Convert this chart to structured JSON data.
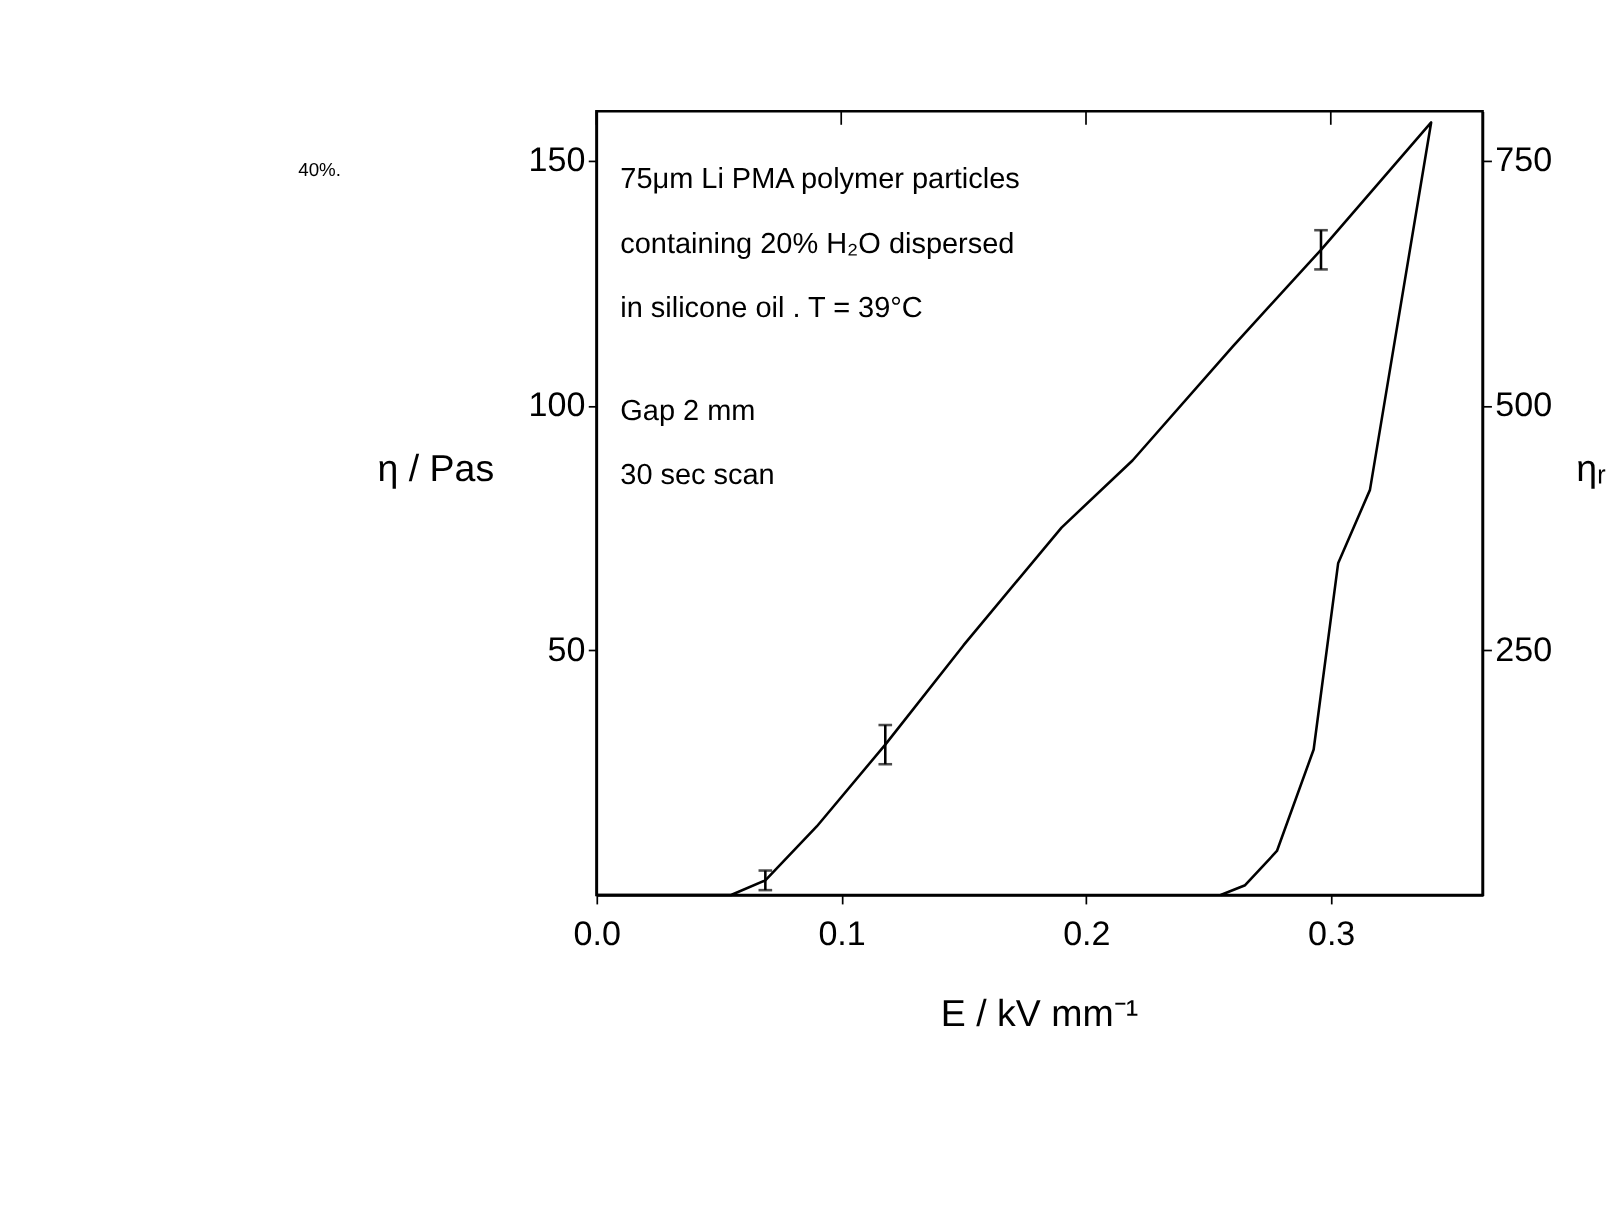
{
  "chart_data": {
    "type": "line",
    "xlabel": "E / kV mm⁻¹",
    "ylabel": "η / Pas",
    "y2label": "ηᵣ",
    "annotations": [
      "40%.",
      "75μm Li PMA polymer particles",
      "containing 20% H₂O dispersed",
      "in silicone oil  .  T = 39°C",
      "Gap  2 mm",
      "30 sec  scan"
    ],
    "series": [
      {
        "color": "#000000",
        "x": [
          0,
          0.055,
          0.069,
          0.09,
          0.118,
          0.15,
          0.19,
          0.219,
          0.26,
          0.296,
          0.341,
          0.316,
          0.303,
          0.293,
          0.278,
          0.265,
          0.255
        ],
        "values": [
          0,
          0,
          3,
          14,
          30.7,
          51,
          75,
          88.7,
          112,
          131.7,
          157.7,
          82.7,
          67.7,
          29.7,
          9,
          2,
          0
        ],
        "errors": [
          null,
          null,
          2,
          null,
          4,
          null,
          null,
          null,
          null,
          4,
          null,
          null,
          null,
          null,
          null,
          null,
          null
        ]
      }
    ],
    "xlim": [
      0,
      0.362
    ],
    "ylim": [
      0,
      160
    ],
    "y2lim": [
      0,
      800
    ],
    "xticks": [
      {
        "value": 0,
        "label": "0.0"
      },
      {
        "value": 0.1,
        "label": "0.1"
      },
      {
        "value": 0.2,
        "label": "0.2"
      },
      {
        "value": 0.3,
        "label": "0.3"
      }
    ],
    "yticks": [
      50,
      100,
      150
    ],
    "y2ticks": [
      250,
      500,
      750
    ],
    "grid": false,
    "marker": "none",
    "line_style": "solid"
  }
}
